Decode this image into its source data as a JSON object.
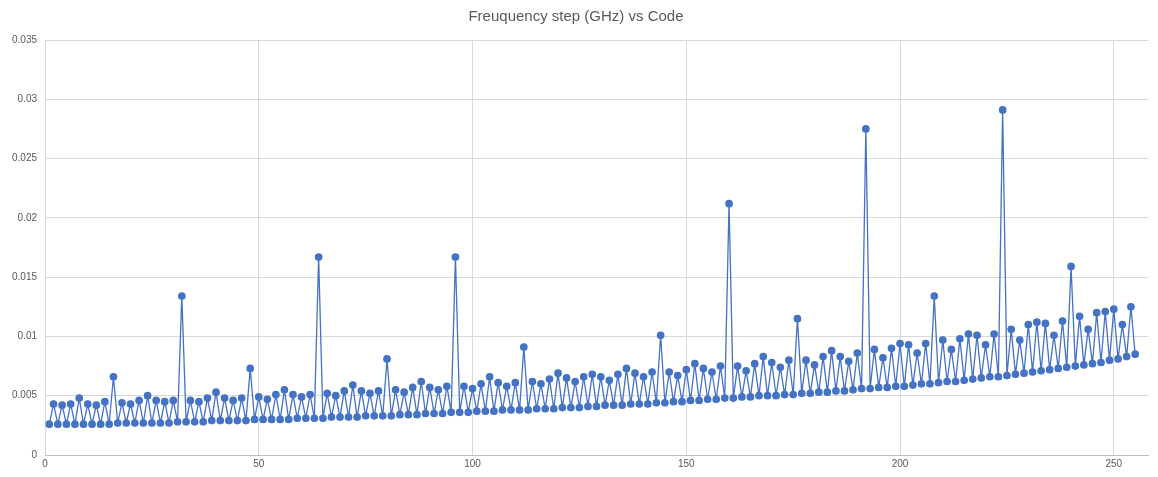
{
  "chart_data": {
    "type": "line",
    "title": "Freuquency step (GHz) vs Code",
    "x": [
      1,
      2,
      3,
      4,
      5,
      6,
      7,
      8,
      9,
      10,
      11,
      12,
      13,
      14,
      15,
      16,
      17,
      18,
      19,
      20,
      21,
      22,
      23,
      24,
      25,
      26,
      27,
      28,
      29,
      30,
      31,
      32,
      33,
      34,
      35,
      36,
      37,
      38,
      39,
      40,
      41,
      42,
      43,
      44,
      45,
      46,
      47,
      48,
      49,
      50,
      51,
      52,
      53,
      54,
      55,
      56,
      57,
      58,
      59,
      60,
      61,
      62,
      63,
      64,
      65,
      66,
      67,
      68,
      69,
      70,
      71,
      72,
      73,
      74,
      75,
      76,
      77,
      78,
      79,
      80,
      81,
      82,
      83,
      84,
      85,
      86,
      87,
      88,
      89,
      90,
      91,
      92,
      93,
      94,
      95,
      96,
      97,
      98,
      99,
      100,
      101,
      102,
      103,
      104,
      105,
      106,
      107,
      108,
      109,
      110,
      111,
      112,
      113,
      114,
      115,
      116,
      117,
      118,
      119,
      120,
      121,
      122,
      123,
      124,
      125,
      126,
      127,
      128,
      129,
      130,
      131,
      132,
      133,
      134,
      135,
      136,
      137,
      138,
      139,
      140,
      141,
      142,
      143,
      144,
      145,
      146,
      147,
      148,
      149,
      150,
      151,
      152,
      153,
      154,
      155,
      156,
      157,
      158,
      159,
      160,
      161,
      162,
      163,
      164,
      165,
      166,
      167,
      168,
      169,
      170,
      171,
      172,
      173,
      174,
      175,
      176,
      177,
      178,
      179,
      180,
      181,
      182,
      183,
      184,
      185,
      186,
      187,
      188,
      189,
      190,
      191,
      192,
      193,
      194,
      195,
      196,
      197,
      198,
      199,
      200,
      201,
      202,
      203,
      204,
      205,
      206,
      207,
      208,
      209,
      210,
      211,
      212,
      213,
      214,
      215,
      216,
      217,
      218,
      219,
      220,
      221,
      222,
      223,
      224,
      225,
      226,
      227,
      228,
      229,
      230,
      231,
      232,
      233,
      234,
      235,
      236,
      237,
      238,
      239,
      240,
      241,
      242,
      243,
      244,
      245,
      246,
      247,
      248,
      249,
      250,
      251,
      252,
      253,
      254,
      255
    ],
    "series": [
      {
        "color": "#4472c4",
        "values": [
          0.0026,
          0.0043,
          0.0026,
          0.0042,
          0.0026,
          0.0043,
          0.0026,
          0.0048,
          0.0026,
          0.0043,
          0.0026,
          0.0042,
          0.0026,
          0.0045,
          0.0026,
          0.0066,
          0.0027,
          0.0044,
          0.0027,
          0.0043,
          0.0027,
          0.0046,
          0.0027,
          0.005,
          0.0027,
          0.0046,
          0.0027,
          0.0045,
          0.0027,
          0.0046,
          0.0028,
          0.0134,
          0.0028,
          0.0046,
          0.0028,
          0.0045,
          0.0028,
          0.0048,
          0.0029,
          0.0053,
          0.0029,
          0.0048,
          0.0029,
          0.0046,
          0.0029,
          0.0048,
          0.0029,
          0.0073,
          0.003,
          0.0049,
          0.003,
          0.0047,
          0.003,
          0.0051,
          0.003,
          0.0055,
          0.003,
          0.0051,
          0.0031,
          0.0049,
          0.0031,
          0.0051,
          0.0031,
          0.0167,
          0.0031,
          0.0052,
          0.0032,
          0.005,
          0.0032,
          0.0054,
          0.0032,
          0.0059,
          0.0032,
          0.0054,
          0.0033,
          0.0052,
          0.0033,
          0.0054,
          0.0033,
          0.0081,
          0.0033,
          0.0055,
          0.0034,
          0.0053,
          0.0034,
          0.0057,
          0.0034,
          0.0062,
          0.0035,
          0.0057,
          0.0035,
          0.0055,
          0.0035,
          0.0058,
          0.0036,
          0.0167,
          0.0036,
          0.0058,
          0.0036,
          0.0056,
          0.0037,
          0.006,
          0.0037,
          0.0066,
          0.0037,
          0.0061,
          0.0038,
          0.0058,
          0.0038,
          0.0061,
          0.0038,
          0.0091,
          0.0038,
          0.0062,
          0.0039,
          0.006,
          0.0039,
          0.0064,
          0.0039,
          0.0069,
          0.004,
          0.0065,
          0.004,
          0.0062,
          0.004,
          0.0066,
          0.0041,
          0.0068,
          0.0041,
          0.0066,
          0.0042,
          0.0063,
          0.0042,
          0.0068,
          0.0042,
          0.0073,
          0.0043,
          0.0069,
          0.0043,
          0.0066,
          0.0043,
          0.007,
          0.0044,
          0.0101,
          0.0044,
          0.007,
          0.0045,
          0.0067,
          0.0045,
          0.0072,
          0.0046,
          0.0077,
          0.0046,
          0.0073,
          0.0047,
          0.007,
          0.0047,
          0.0075,
          0.0048,
          0.0212,
          0.0048,
          0.0075,
          0.0049,
          0.0071,
          0.0049,
          0.0077,
          0.005,
          0.0083,
          0.005,
          0.0078,
          0.005,
          0.0074,
          0.0051,
          0.008,
          0.0051,
          0.0115,
          0.0052,
          0.008,
          0.0052,
          0.0076,
          0.0053,
          0.0083,
          0.0053,
          0.0088,
          0.0054,
          0.0083,
          0.0054,
          0.0079,
          0.0055,
          0.0086,
          0.0056,
          0.0275,
          0.0056,
          0.0089,
          0.0057,
          0.0082,
          0.0057,
          0.009,
          0.0058,
          0.0094,
          0.0058,
          0.0093,
          0.0059,
          0.0086,
          0.006,
          0.0094,
          0.006,
          0.0134,
          0.0061,
          0.0097,
          0.0062,
          0.0089,
          0.0062,
          0.0098,
          0.0063,
          0.0102,
          0.0064,
          0.0101,
          0.0065,
          0.0093,
          0.0066,
          0.0102,
          0.0066,
          0.0291,
          0.0067,
          0.0106,
          0.0068,
          0.0097,
          0.0069,
          0.011,
          0.007,
          0.0112,
          0.0071,
          0.0111,
          0.0072,
          0.0101,
          0.0073,
          0.0113,
          0.0074,
          0.0159,
          0.0075,
          0.0117,
          0.0076,
          0.0106,
          0.0077,
          0.012,
          0.0078,
          0.0121,
          0.008,
          0.0123,
          0.0081,
          0.011,
          0.0083,
          0.0125,
          0.0085
        ]
      }
    ],
    "xlim": [
      0,
      258
    ],
    "xticks": [
      0,
      50,
      100,
      150,
      200,
      250
    ],
    "ylim": [
      0,
      0.035
    ],
    "yticks": [
      0,
      0.005,
      0.01,
      0.015,
      0.02,
      0.025,
      0.03,
      0.035
    ],
    "grid": true,
    "legend": false,
    "marker": "circle",
    "line_style": "solid"
  }
}
